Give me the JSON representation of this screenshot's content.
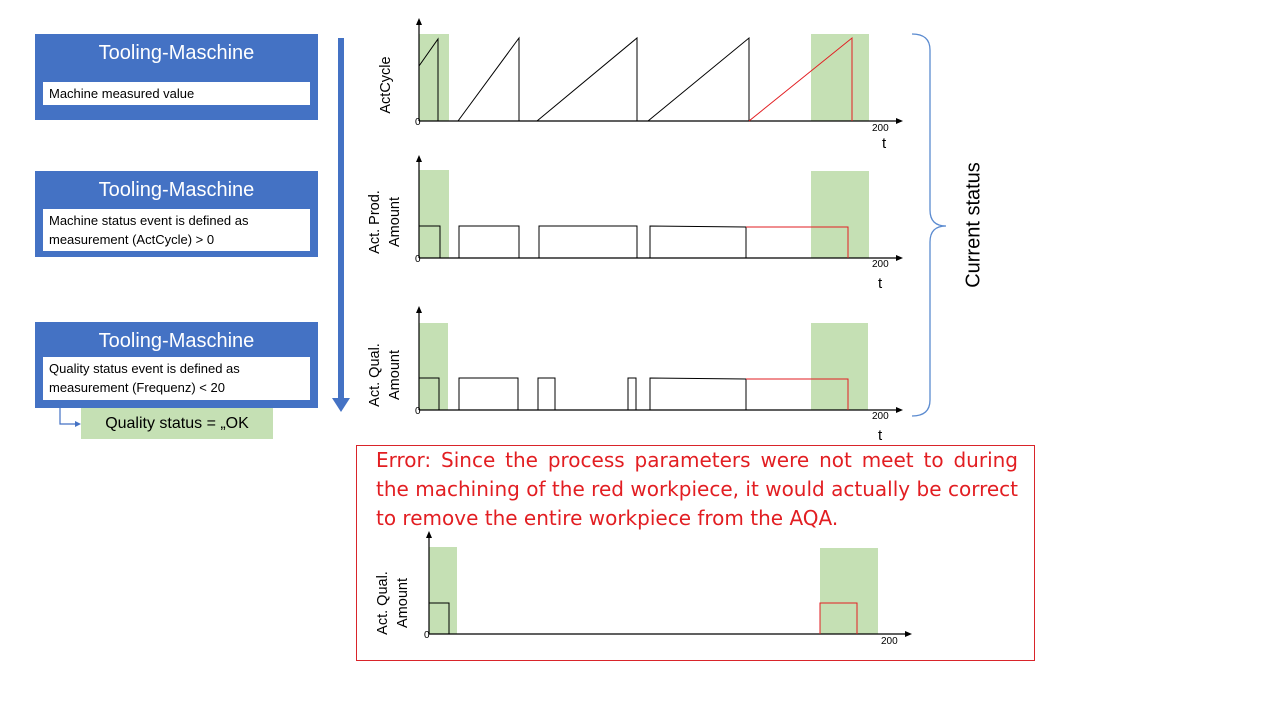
{
  "panels": [
    {
      "title": "Tooling-Maschine",
      "text": "Machine measured value"
    },
    {
      "title": "Tooling-Maschine",
      "text": "Machine status event is defined as measurement (ActCycle) > 0"
    },
    {
      "title": "Tooling-Maschine",
      "text": "Quality status event is defined as measurement (Frequenz) < 20"
    }
  ],
  "quality_status": "Quality status = „OK",
  "current_status": "Current status",
  "error_text": "Error: Since the process parameters were not meet to during the machining of the red workpiece, it would actually be correct to remove the entire workpiece from the AQA.",
  "plots": [
    {
      "ylabel": "ActCycle",
      "xmin": "0",
      "xmax": "200",
      "xlabel": "t"
    },
    {
      "ylabel_line1": "Act. Prod.",
      "ylabel_line2": "Amount",
      "xmin": "0",
      "xmax": "200",
      "xlabel": "t"
    },
    {
      "ylabel_line1": "Act. Qual.",
      "ylabel_line2": "Amount",
      "xmin": "0",
      "xmax": "200",
      "xlabel": "t"
    },
    {
      "ylabel_line1": "Act. Qual.",
      "ylabel_line2": "Amount",
      "xmin": "0",
      "xmax": "200"
    }
  ],
  "colors": {
    "panel_blue": "#4472c4",
    "highlight_green": "#c5e0b4",
    "error_red": "#e21e22",
    "bracket_blue": "#5b8bd0"
  }
}
